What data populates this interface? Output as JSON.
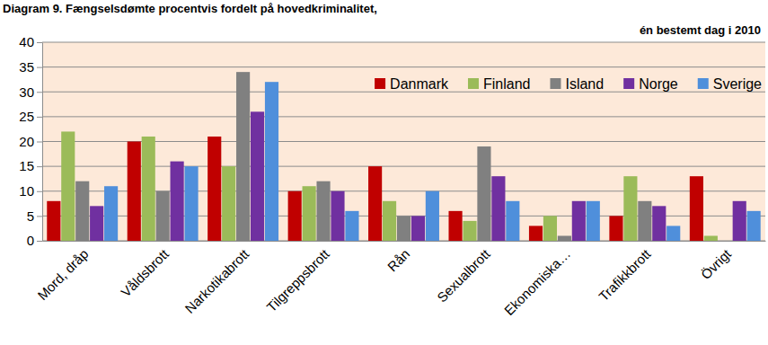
{
  "chart_data": {
    "type": "bar",
    "title": "Diagram 9. Fængselsdømte procentvis fordelt på hovedkriminalitet,",
    "subtitle": "én bestemt dag i 2010",
    "categories": [
      "Mord, dråp",
      "Våldsbrott",
      "Narkotikabrott",
      "Tilgreppsbrott",
      "Rån",
      "Sexualbrott",
      "Ekonomiska…",
      "Trafikkbrott",
      "Övrigt"
    ],
    "series": [
      {
        "name": "Danmark",
        "color": "#c00000",
        "values": [
          8,
          20,
          21,
          10,
          15,
          6,
          3,
          5,
          13
        ]
      },
      {
        "name": "Finland",
        "color": "#9bbb59",
        "values": [
          22,
          21,
          15,
          11,
          8,
          4,
          5,
          13,
          1
        ]
      },
      {
        "name": "Island",
        "color": "#808080",
        "values": [
          12,
          10,
          34,
          12,
          5,
          19,
          1,
          8,
          0
        ]
      },
      {
        "name": "Norge",
        "color": "#7030a0",
        "values": [
          7,
          16,
          26,
          10,
          5,
          13,
          8,
          7,
          8
        ]
      },
      {
        "name": "Sverige",
        "color": "#4f8fdb",
        "values": [
          11,
          15,
          32,
          6,
          10,
          8,
          8,
          3,
          6
        ]
      }
    ],
    "ylim": [
      0,
      40
    ],
    "yticks": [
      0,
      5,
      10,
      15,
      20,
      25,
      30,
      35,
      40
    ],
    "grid": true,
    "legend": "top-right"
  }
}
